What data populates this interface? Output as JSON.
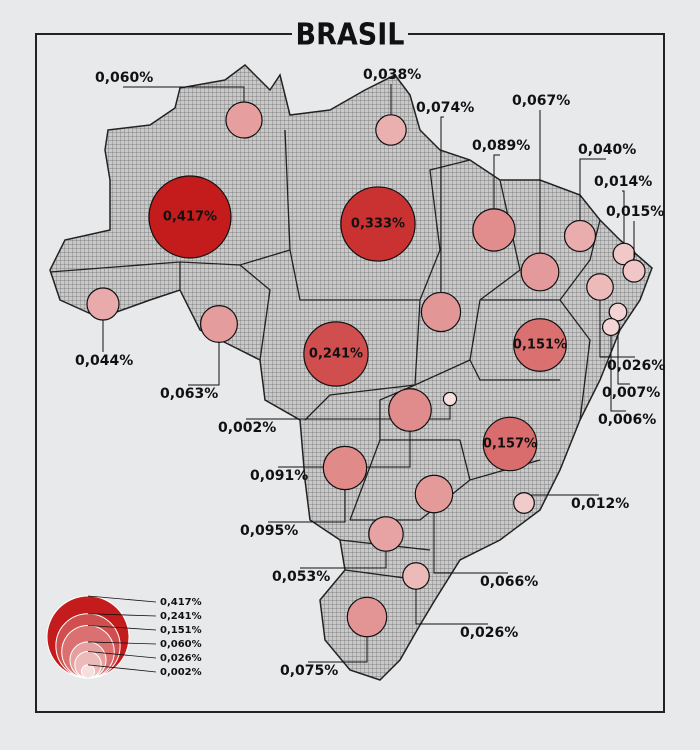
{
  "title": "BRASIL",
  "states": [
    {
      "value": 0.06,
      "label": "0,060%"
    },
    {
      "value": 0.038,
      "label": "0,038%"
    },
    {
      "value": 0.074,
      "label": "0,074%"
    },
    {
      "value": 0.067,
      "label": "0,067%"
    },
    {
      "value": 0.089,
      "label": "0,089%"
    },
    {
      "value": 0.04,
      "label": "0,040%"
    },
    {
      "value": 0.014,
      "label": "0,014%"
    },
    {
      "value": 0.015,
      "label": "0,015%"
    },
    {
      "value": 0.417,
      "label": "0,417%"
    },
    {
      "value": 0.333,
      "label": "0,333%"
    },
    {
      "value": 0.044,
      "label": "0,044%"
    },
    {
      "value": 0.063,
      "label": "0,063%"
    },
    {
      "value": 0.241,
      "label": "0,241%"
    },
    {
      "value": 0.151,
      "label": "0,151%"
    },
    {
      "value": 0.026,
      "label": "0,026%"
    },
    {
      "value": 0.007,
      "label": "0,007%"
    },
    {
      "value": 0.006,
      "label": "0,006%"
    },
    {
      "value": 0.002,
      "label": "0,002%"
    },
    {
      "value": 0.091,
      "label": "0,091%"
    },
    {
      "value": 0.157,
      "label": "0,157%"
    },
    {
      "value": 0.012,
      "label": "0,012%"
    },
    {
      "value": 0.095,
      "label": "0,095%"
    },
    {
      "value": 0.066,
      "label": "0,066%"
    },
    {
      "value": 0.053,
      "label": "0,053%"
    },
    {
      "value": 0.026,
      "label": "0,026%"
    },
    {
      "value": 0.075,
      "label": "0,075%"
    }
  ],
  "legend": [
    {
      "value": 0.417,
      "label": "0,417%"
    },
    {
      "value": 0.241,
      "label": "0,241%"
    },
    {
      "value": 0.151,
      "label": "0,151%"
    },
    {
      "value": 0.06,
      "label": "0,060%"
    },
    {
      "value": 0.026,
      "label": "0,026%"
    },
    {
      "value": 0.002,
      "label": "0,002%"
    }
  ]
}
